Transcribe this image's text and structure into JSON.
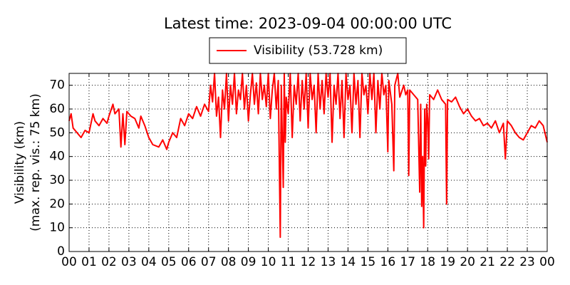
{
  "chart_data": {
    "type": "line",
    "title": "Latest time: 2023-09-04 00:00:00 UTC",
    "ylabel": [
      "Visibility (km)",
      "(max. rep. vis.: 75 km)"
    ],
    "xlim": [
      0,
      24
    ],
    "ylim": [
      0,
      75
    ],
    "xticks": [
      {
        "value": 0,
        "label": "00"
      },
      {
        "value": 1,
        "label": "01"
      },
      {
        "value": 2,
        "label": "02"
      },
      {
        "value": 3,
        "label": "03"
      },
      {
        "value": 4,
        "label": "04"
      },
      {
        "value": 5,
        "label": "05"
      },
      {
        "value": 6,
        "label": "06"
      },
      {
        "value": 7,
        "label": "07"
      },
      {
        "value": 8,
        "label": "08"
      },
      {
        "value": 9,
        "label": "09"
      },
      {
        "value": 10,
        "label": "10"
      },
      {
        "value": 11,
        "label": "11"
      },
      {
        "value": 12,
        "label": "12"
      },
      {
        "value": 13,
        "label": "13"
      },
      {
        "value": 14,
        "label": "14"
      },
      {
        "value": 15,
        "label": "15"
      },
      {
        "value": 16,
        "label": "16"
      },
      {
        "value": 17,
        "label": "17"
      },
      {
        "value": 18,
        "label": "18"
      },
      {
        "value": 19,
        "label": "19"
      },
      {
        "value": 20,
        "label": "20"
      },
      {
        "value": 21,
        "label": "21"
      },
      {
        "value": 22,
        "label": "22"
      },
      {
        "value": 23,
        "label": "23"
      },
      {
        "value": 24,
        "label": "00"
      }
    ],
    "yticks": [
      0,
      10,
      20,
      30,
      40,
      50,
      60,
      70
    ],
    "grid": true,
    "legend": "top",
    "x": [
      0,
      0.1,
      0.2,
      0.4,
      0.6,
      0.8,
      1.0,
      1.2,
      1.3,
      1.5,
      1.7,
      1.9,
      2.0,
      2.2,
      2.3,
      2.5,
      2.6,
      2.7,
      2.8,
      2.9,
      3.1,
      3.3,
      3.5,
      3.6,
      3.8,
      4.0,
      4.2,
      4.5,
      4.7,
      4.9,
      5.0,
      5.2,
      5.4,
      5.6,
      5.8,
      6.0,
      6.2,
      6.4,
      6.6,
      6.8,
      7.0,
      7.1,
      7.2,
      7.3,
      7.4,
      7.5,
      7.6,
      7.7,
      7.8,
      7.9,
      8.0,
      8.1,
      8.2,
      8.3,
      8.4,
      8.5,
      8.6,
      8.7,
      8.8,
      8.9,
      9.0,
      9.1,
      9.2,
      9.3,
      9.4,
      9.5,
      9.6,
      9.7,
      9.8,
      9.9,
      10.0,
      10.1,
      10.2,
      10.3,
      10.4,
      10.5,
      10.6,
      10.65,
      10.75,
      10.8,
      10.85,
      10.9,
      11.0,
      11.1,
      11.2,
      11.3,
      11.4,
      11.5,
      11.6,
      11.7,
      11.8,
      11.9,
      12.0,
      12.1,
      12.2,
      12.3,
      12.4,
      12.5,
      12.6,
      12.7,
      12.8,
      12.9,
      13.0,
      13.1,
      13.2,
      13.3,
      13.4,
      13.5,
      13.6,
      13.7,
      13.8,
      13.9,
      14.0,
      14.1,
      14.2,
      14.3,
      14.4,
      14.5,
      14.6,
      14.7,
      14.8,
      14.9,
      15.0,
      15.1,
      15.2,
      15.3,
      15.4,
      15.5,
      15.6,
      15.7,
      15.8,
      15.9,
      16.0,
      16.05,
      16.2,
      16.3,
      16.35,
      16.5,
      16.6,
      16.8,
      16.9,
      17.0,
      17.05,
      17.1,
      17.3,
      17.5,
      17.6,
      17.65,
      17.7,
      17.75,
      17.8,
      17.85,
      17.9,
      17.95,
      18.0,
      18.05,
      18.1,
      18.3,
      18.5,
      18.7,
      18.9,
      18.95,
      19.0,
      19.2,
      19.4,
      19.6,
      19.8,
      20.0,
      20.2,
      20.4,
      20.6,
      20.8,
      21.0,
      21.2,
      21.4,
      21.6,
      21.8,
      21.9,
      22.0,
      22.2,
      22.4,
      22.6,
      22.8,
      23.0,
      23.2,
      23.4,
      23.6,
      23.8,
      24.0
    ],
    "series": [
      {
        "name": "Visibility (53.728 km)",
        "color": "#ff0000",
        "values": [
          55,
          58,
          52,
          50,
          48,
          51,
          50,
          58,
          55,
          53,
          56,
          54,
          57,
          62,
          58,
          60,
          44,
          58,
          45,
          59,
          57,
          56,
          52,
          57,
          53,
          48,
          45,
          44,
          47,
          43,
          46,
          50,
          48,
          56,
          53,
          58,
          56,
          61,
          57,
          62,
          59,
          70,
          63,
          75,
          57,
          65,
          48,
          68,
          60,
          75,
          55,
          70,
          62,
          75,
          58,
          68,
          64,
          75,
          60,
          70,
          55,
          66,
          75,
          62,
          71,
          58,
          75,
          64,
          70,
          61,
          75,
          56,
          68,
          75,
          60,
          72,
          6,
          70,
          27,
          75,
          46,
          65,
          58,
          75,
          48,
          70,
          62,
          75,
          55,
          72,
          60,
          75,
          52,
          75,
          64,
          70,
          50,
          75,
          60,
          72,
          58,
          75,
          65,
          75,
          46,
          70,
          62,
          75,
          56,
          72,
          48,
          75,
          64,
          70,
          50,
          75,
          62,
          72,
          48,
          75,
          66,
          70,
          58,
          75,
          64,
          75,
          50,
          72,
          60,
          75,
          66,
          70,
          42,
          72,
          62,
          34,
          70,
          75,
          65,
          70,
          66,
          68,
          32,
          68,
          66,
          64,
          25,
          62,
          19,
          40,
          10,
          60,
          36,
          62,
          56,
          39,
          66,
          64,
          68,
          64,
          62,
          20,
          64,
          63,
          65,
          61,
          58,
          60,
          57,
          55,
          56,
          53,
          54,
          52,
          55,
          50,
          54,
          39,
          55,
          53,
          50,
          48,
          47,
          50,
          53,
          52,
          55,
          53,
          46
        ]
      }
    ]
  }
}
